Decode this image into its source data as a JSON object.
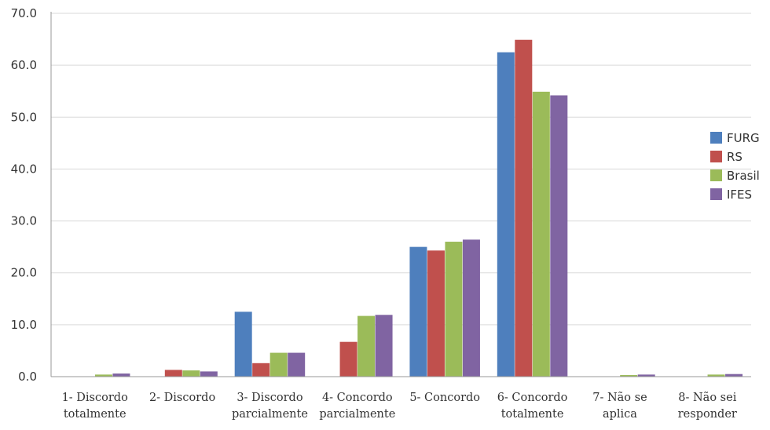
{
  "chart_data": {
    "type": "bar",
    "categories": [
      [
        "1- Discordo",
        "totalmente"
      ],
      [
        "2- Discordo"
      ],
      [
        "3- Discordo",
        "parcialmente"
      ],
      [
        "4- Concordo",
        "parcialmente"
      ],
      [
        "5- Concordo"
      ],
      [
        "6- Concordo",
        "totalmente"
      ],
      [
        "7- Não se",
        "aplica"
      ],
      [
        "8- Não sei",
        "responder"
      ]
    ],
    "series": [
      {
        "name": "FURG",
        "color": "#4e7fbd",
        "values": [
          0.0,
          0.0,
          12.5,
          0.0,
          25.0,
          62.5,
          0.0,
          0.0
        ]
      },
      {
        "name": "RS",
        "color": "#c0504d",
        "values": [
          0.0,
          1.3,
          2.6,
          6.7,
          24.3,
          64.9,
          0.0,
          0.0
        ]
      },
      {
        "name": "Brasil",
        "color": "#9bbb59",
        "values": [
          0.4,
          1.2,
          4.6,
          11.7,
          26.0,
          54.9,
          0.3,
          0.4
        ]
      },
      {
        "name": "IFES",
        "color": "#8064a2",
        "values": [
          0.6,
          1.0,
          4.6,
          11.9,
          26.4,
          54.2,
          0.4,
          0.5
        ]
      }
    ],
    "yticks": [
      "0.0",
      "10.0",
      "20.0",
      "30.0",
      "40.0",
      "50.0",
      "60.0",
      "70.0"
    ],
    "ylim": [
      0,
      70
    ],
    "grid": true,
    "legend_position": "right"
  }
}
